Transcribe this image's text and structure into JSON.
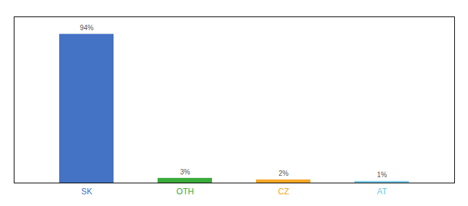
{
  "chart_data": {
    "type": "bar",
    "categories": [
      "SK",
      "OTH",
      "CZ",
      "AT"
    ],
    "values": [
      94,
      3,
      2,
      1
    ],
    "value_labels": [
      "94%",
      "3%",
      "2%",
      "1%"
    ],
    "colors": [
      "#4472c4",
      "#3aab3a",
      "#f5a623",
      "#70c8e8"
    ],
    "ylim": [
      0,
      105
    ],
    "data_labels": true,
    "tick_labels": "x"
  }
}
